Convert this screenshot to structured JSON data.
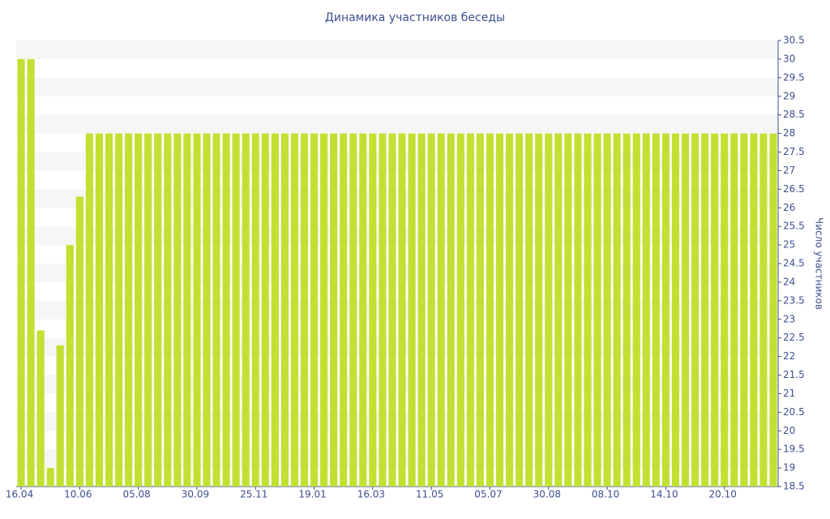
{
  "chart_data": {
    "type": "bar",
    "title": "Динамика участников беседы",
    "y_label": "Число участников",
    "categories": [
      "16.04",
      null,
      null,
      null,
      null,
      null,
      "10.06",
      null,
      null,
      null,
      null,
      null,
      "05.08",
      null,
      null,
      null,
      null,
      null,
      "30.09",
      null,
      null,
      null,
      null,
      null,
      "25.11",
      null,
      null,
      null,
      null,
      null,
      "19.01",
      null,
      null,
      null,
      null,
      null,
      "16.03",
      null,
      null,
      null,
      null,
      null,
      "11.05",
      null,
      null,
      null,
      null,
      null,
      "05.07",
      null,
      null,
      null,
      null,
      null,
      "30.08",
      null,
      null,
      null,
      null,
      null,
      "08.10",
      null,
      null,
      null,
      null,
      null,
      "14.10",
      null,
      null,
      null,
      null,
      null,
      "20.10",
      null,
      null,
      null,
      null,
      null
    ],
    "values": [
      30,
      30,
      22.7,
      19,
      22.3,
      25,
      26.3,
      28,
      28,
      28,
      28,
      28,
      28,
      28,
      28,
      28,
      28,
      28,
      28,
      28,
      28,
      28,
      28,
      28,
      28,
      28,
      28,
      28,
      28,
      28,
      28,
      28,
      28,
      28,
      28,
      28,
      28,
      28,
      28,
      28,
      28,
      28,
      28,
      28,
      28,
      28,
      28,
      28,
      28,
      28,
      28,
      28,
      28,
      28,
      28,
      28,
      28,
      28,
      28,
      28,
      28,
      28,
      28,
      28,
      28,
      28,
      28,
      28,
      28,
      28,
      28,
      28,
      28,
      28,
      28,
      28,
      28,
      28
    ],
    "color": "#c2e032",
    "ylim": [
      18.5,
      30.5
    ],
    "yticks": [
      18.5,
      19,
      19.5,
      20,
      20.5,
      21,
      21.5,
      22,
      22.5,
      23,
      23.5,
      24,
      24.5,
      25,
      25.5,
      26,
      26.5,
      27,
      27.5,
      28,
      28.5,
      29,
      29.5,
      30,
      30.5
    ],
    "y_axis_side": "right",
    "grid": true
  }
}
